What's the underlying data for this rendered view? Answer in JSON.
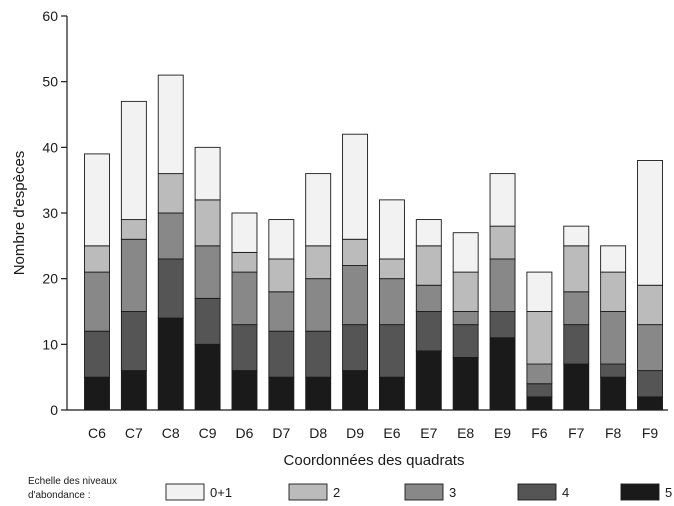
{
  "chart_data": {
    "type": "bar",
    "stacked": true,
    "categories": [
      "C6",
      "C7",
      "C8",
      "C9",
      "D6",
      "D7",
      "D8",
      "D9",
      "E6",
      "E7",
      "E8",
      "E9",
      "F6",
      "F7",
      "F8",
      "F9"
    ],
    "series": [
      {
        "name": "5",
        "color": "#1a1a1a",
        "values": [
          5,
          6,
          14,
          10,
          6,
          5,
          5,
          6,
          5,
          9,
          8,
          11,
          2,
          7,
          5,
          2
        ]
      },
      {
        "name": "4",
        "color": "#555555",
        "values": [
          7,
          9,
          9,
          7,
          7,
          7,
          7,
          7,
          8,
          6,
          5,
          4,
          2,
          6,
          2,
          4
        ]
      },
      {
        "name": "3",
        "color": "#888888",
        "values": [
          9,
          11,
          7,
          8,
          8,
          6,
          8,
          9,
          7,
          4,
          2,
          8,
          3,
          5,
          8,
          7
        ]
      },
      {
        "name": "2",
        "color": "#bbbbbb",
        "values": [
          4,
          3,
          6,
          7,
          3,
          5,
          5,
          4,
          3,
          6,
          6,
          5,
          8,
          7,
          6,
          6
        ]
      },
      {
        "name": "0+1",
        "color": "#f2f2f2",
        "values": [
          14,
          18,
          15,
          8,
          6,
          6,
          11,
          16,
          9,
          4,
          6,
          8,
          6,
          3,
          4,
          19
        ]
      }
    ],
    "title": "",
    "xlabel": "Coordonnées des quadrats",
    "ylabel": "Nombre d'espèces",
    "ylim": [
      0,
      60
    ],
    "yticks": [
      0,
      10,
      20,
      30,
      40,
      50,
      60
    ],
    "grid": false,
    "legend": {
      "title": "Echelle des niveaux d'abondance :",
      "placement": "bottom",
      "entries": [
        "0+1",
        "2",
        "3",
        "4",
        "5"
      ]
    }
  }
}
